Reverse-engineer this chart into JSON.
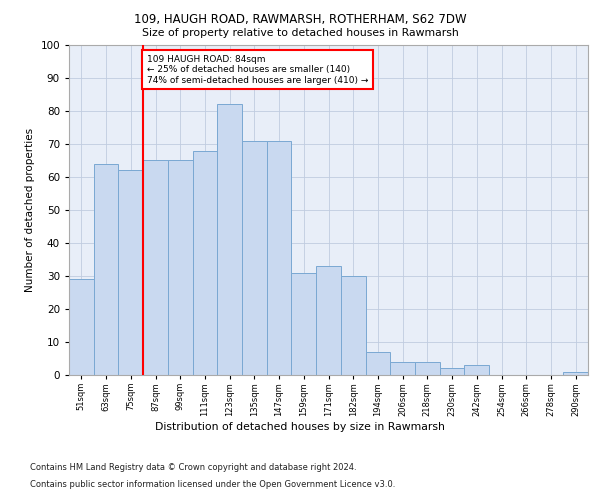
{
  "title1": "109, HAUGH ROAD, RAWMARSH, ROTHERHAM, S62 7DW",
  "title2": "Size of property relative to detached houses in Rawmarsh",
  "xlabel": "Distribution of detached houses by size in Rawmarsh",
  "ylabel": "Number of detached properties",
  "categories": [
    "51sqm",
    "63sqm",
    "75sqm",
    "87sqm",
    "99sqm",
    "111sqm",
    "123sqm",
    "135sqm",
    "147sqm",
    "159sqm",
    "171sqm",
    "182sqm",
    "194sqm",
    "206sqm",
    "218sqm",
    "230sqm",
    "242sqm",
    "254sqm",
    "266sqm",
    "278sqm",
    "290sqm"
  ],
  "values": [
    29,
    64,
    62,
    65,
    65,
    68,
    82,
    71,
    71,
    31,
    33,
    30,
    7,
    4,
    4,
    2,
    3,
    0,
    0,
    0,
    1
  ],
  "bar_color": "#c9d9f0",
  "bar_edge_color": "#7aa8d2",
  "vline_x": 2.5,
  "vline_color": "red",
  "annotation_text": "109 HAUGH ROAD: 84sqm\n← 25% of detached houses are smaller (140)\n74% of semi-detached houses are larger (410) →",
  "annotation_box_color": "white",
  "annotation_box_edge_color": "red",
  "footnote1": "Contains HM Land Registry data © Crown copyright and database right 2024.",
  "footnote2": "Contains public sector information licensed under the Open Government Licence v3.0.",
  "ylim": [
    0,
    100
  ],
  "background_color": "#e8eef8",
  "plot_background": "white"
}
